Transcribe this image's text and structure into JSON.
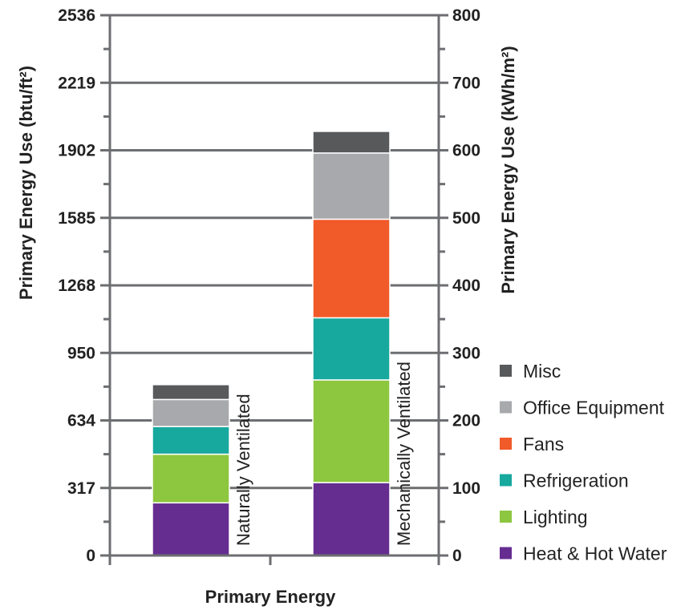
{
  "chart_data": {
    "type": "bar",
    "stacked": true,
    "xlabel": "Primary Energy",
    "ylabel_left": "Primary Energy Use (btu/ft²)",
    "ylabel_right": "Primary Energy Use (kWh/m²)",
    "left_ticks": [
      "0",
      "317",
      "634",
      "950",
      "1268",
      "1585",
      "1902",
      "2219",
      "2536"
    ],
    "right_ticks": [
      "0",
      "100",
      "200",
      "300",
      "400",
      "500",
      "600",
      "700",
      "800"
    ],
    "ylim": [
      0,
      800
    ],
    "grid": true,
    "legend_position": "right",
    "categories": [
      "Naturally Ventilated",
      "Mechanically Ventilated"
    ],
    "series": [
      {
        "name": "Heat & Hot Water",
        "color": "#662d91",
        "values": [
          78,
          108
        ]
      },
      {
        "name": "Lighting",
        "color": "#8dc63f",
        "values": [
          72,
          152
        ]
      },
      {
        "name": "Refrigeration",
        "color": "#17a89e",
        "values": [
          41,
          92
        ]
      },
      {
        "name": "Fans",
        "color": "#f15a29",
        "values": [
          0,
          146
        ]
      },
      {
        "name": "Office Equipment",
        "color": "#a7a9ac",
        "values": [
          40,
          98
        ]
      },
      {
        "name": "Misc",
        "color": "#58595b",
        "values": [
          22,
          32
        ]
      }
    ],
    "legend_order": [
      "Misc",
      "Office Equipment",
      "Fans",
      "Refrigeration",
      "Lighting",
      "Heat & Hot Water"
    ]
  }
}
